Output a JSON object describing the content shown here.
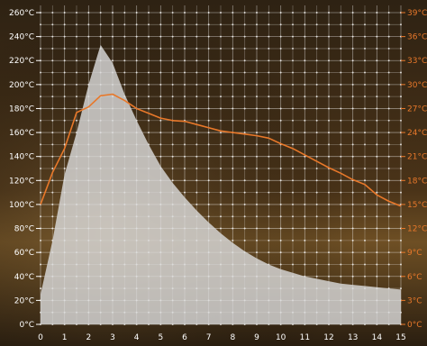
{
  "chart_data": {
    "type": "area",
    "x": [
      0,
      0.5,
      1,
      1.5,
      2,
      2.5,
      3,
      3.5,
      4,
      4.5,
      5,
      5.5,
      6,
      6.5,
      7,
      7.5,
      8,
      8.5,
      9,
      9.5,
      10,
      10.5,
      11,
      11.5,
      12,
      12.5,
      13,
      13.5,
      14,
      14.5,
      15
    ],
    "xticks": [
      "0",
      "1",
      "2",
      "3",
      "4",
      "5",
      "6",
      "7",
      "8",
      "9",
      "10",
      "11",
      "12",
      "13",
      "14",
      "15"
    ],
    "xlim": [
      0,
      15
    ],
    "series": [
      {
        "axis": "left",
        "kind": "area",
        "color": "#d9d9d9",
        "values": [
          25,
          70,
          125,
          160,
          200,
          233,
          218,
          192,
          170,
          150,
          132,
          118,
          106,
          95,
          85,
          76,
          68,
          61,
          55,
          50,
          46,
          43,
          40,
          38,
          36,
          34,
          33,
          32,
          31,
          30,
          29
        ]
      },
      {
        "axis": "right",
        "kind": "line",
        "color": "#e8782a",
        "values": [
          15.0,
          19.0,
          22.0,
          26.5,
          27.2,
          28.6,
          28.8,
          28.0,
          27.0,
          26.4,
          25.8,
          25.5,
          25.4,
          25.0,
          24.6,
          24.2,
          24.0,
          23.8,
          23.6,
          23.3,
          22.6,
          22.0,
          21.2,
          20.4,
          19.6,
          18.9,
          18.1,
          17.5,
          16.2,
          15.4,
          14.8
        ]
      }
    ],
    "left_axis": {
      "ticks": [
        "0°C",
        "20°C",
        "40°C",
        "60°C",
        "80°C",
        "100°C",
        "120°C",
        "140°C",
        "160°C",
        "180°C",
        "200°C",
        "220°C",
        "240°C",
        "260°C"
      ],
      "ylim": [
        0,
        260
      ],
      "color": "#ffffff"
    },
    "right_axis": {
      "ticks": [
        "0°C",
        "3°C",
        "6°C",
        "9°C",
        "12°C",
        "15°C",
        "18°C",
        "21°C",
        "24°C",
        "27°C",
        "30°C",
        "33°C",
        "36°C",
        "39°C"
      ],
      "ylim": [
        0,
        39
      ],
      "color": "#e8782a"
    },
    "grid": true,
    "gridline_color": "#ffffff",
    "background_colors": [
      "#3a2a14",
      "#6b4a22",
      "#2b2010"
    ]
  }
}
